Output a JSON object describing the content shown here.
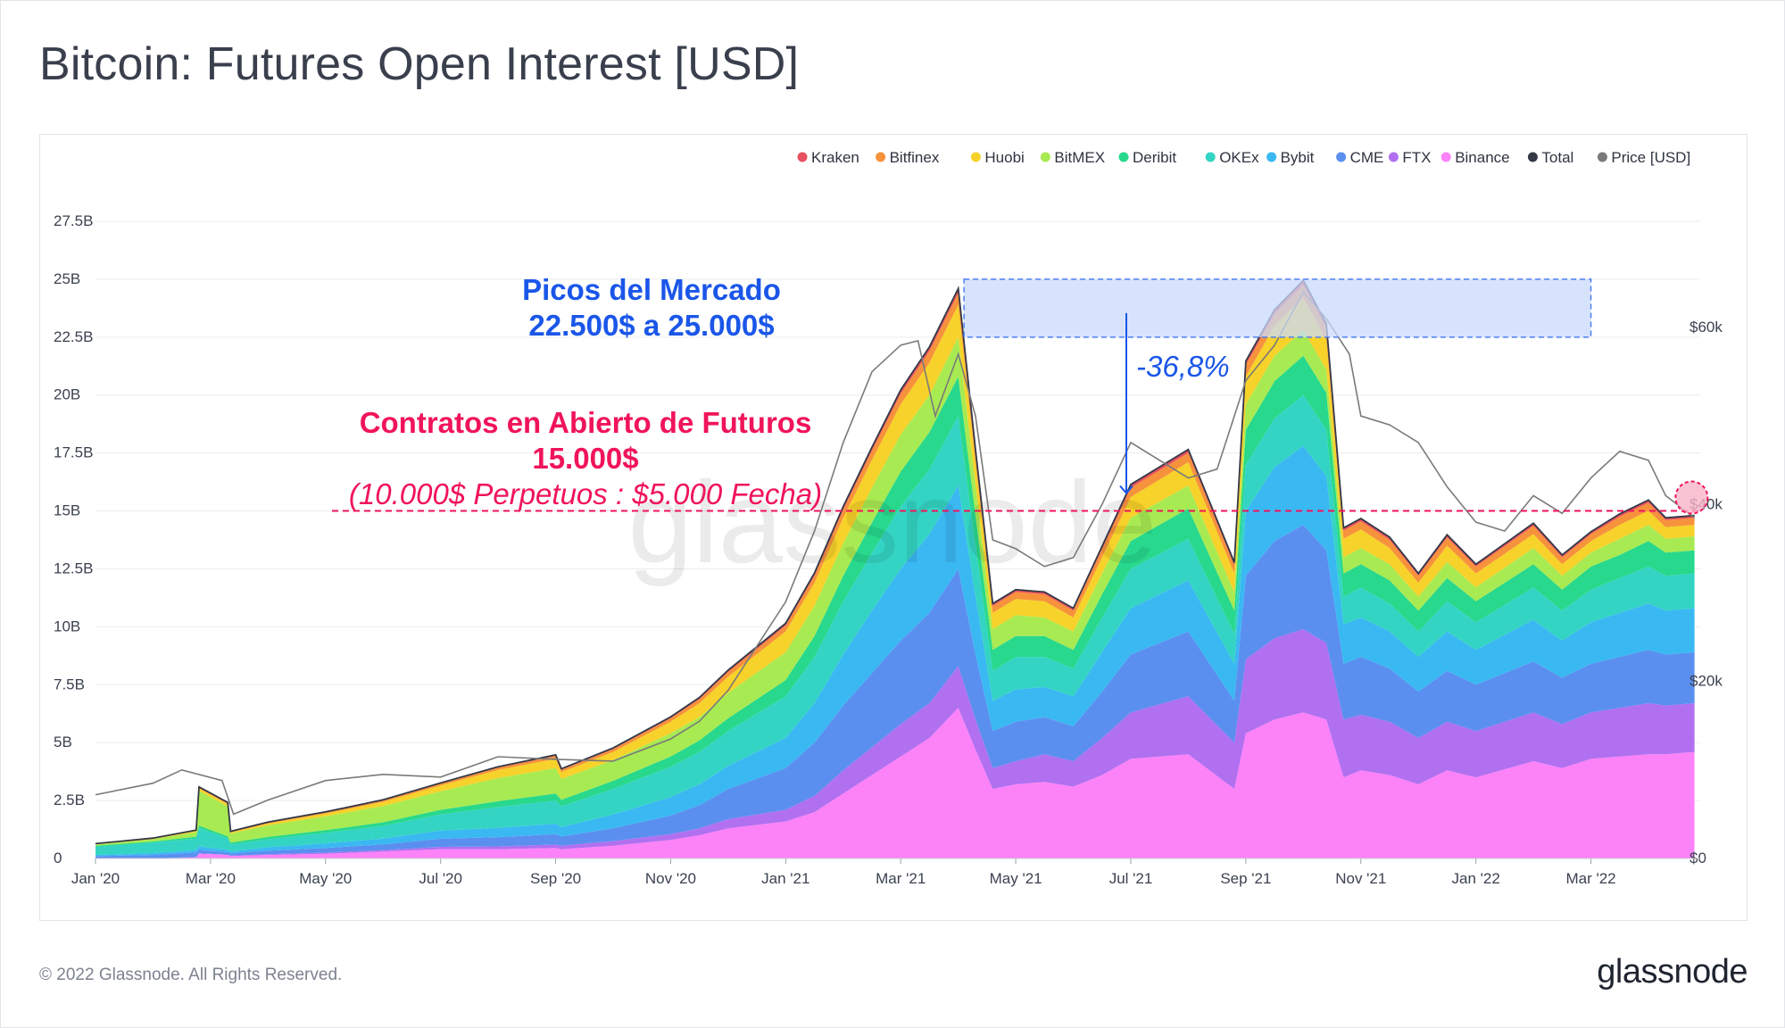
{
  "title": "Bitcoin: Futures Open Interest [USD]",
  "footer": "© 2022 Glassnode. All Rights Reserved.",
  "brand": "glassnode",
  "watermark": "glassnode",
  "colors": {
    "kraken": "#e8515f",
    "bitfinex": "#f7923c",
    "huobi": "#f7d22a",
    "bitmex": "#a8ea52",
    "deribit": "#28d88c",
    "okex": "#34d4c4",
    "bybit": "#3ab8f2",
    "cme": "#5a8ff0",
    "ftx": "#b070f0",
    "binance": "#fc82f8",
    "total": "#333a46",
    "price": "#7a7a7a",
    "annotation_blue": "#1a56e8",
    "annotation_red": "#f0145a"
  },
  "annotations": {
    "peaks_line1": "Picos del Mercado",
    "peaks_line2": "22.500$ a 25.000$",
    "drop": "-36,8%",
    "contracts_line1": "Contratos en Abierto de Futuros",
    "contracts_line2": "15.000$",
    "contracts_line3": "(10.000$ Perpetuos : $5.000 Fecha)"
  },
  "chart_data": {
    "type": "area",
    "title": "Bitcoin: Futures Open Interest [USD]",
    "stacked": true,
    "legend": [
      {
        "name": "Kraken",
        "color": "#e8515f"
      },
      {
        "name": "Bitfinex",
        "color": "#f7923c"
      },
      {
        "name": "Huobi",
        "color": "#f7d22a"
      },
      {
        "name": "BitMEX",
        "color": "#a8ea52"
      },
      {
        "name": "Deribit",
        "color": "#28d88c"
      },
      {
        "name": "OKEx",
        "color": "#34d4c4"
      },
      {
        "name": "Bybit",
        "color": "#3ab8f2"
      },
      {
        "name": "CME",
        "color": "#5a8ff0"
      },
      {
        "name": "FTX",
        "color": "#b070f0"
      },
      {
        "name": "Binance",
        "color": "#fc82f8"
      },
      {
        "name": "Total",
        "color": "#333a46"
      },
      {
        "name": "Price [USD]",
        "color": "#7a7a7a"
      }
    ],
    "legend_position": "top-right",
    "x_ticks": [
      "Jan '20",
      "Mar '20",
      "May '20",
      "Jul '20",
      "Sep '20",
      "Nov '20",
      "Jan '21",
      "Mar '21",
      "May '21",
      "Jul '21",
      "Sep '21",
      "Nov '21",
      "Jan '22",
      "Mar '22"
    ],
    "y_ticks_left": [
      "0",
      "2.5B",
      "5B",
      "7.5B",
      "10B",
      "12.5B",
      "15B",
      "17.5B",
      "20B",
      "22.5B",
      "25B",
      "27.5B"
    ],
    "y_ticks_right": [
      "$0",
      "$20k",
      "$40k",
      "$60k"
    ],
    "ylim_left": [
      0,
      27.5
    ],
    "ylim_right": [
      0,
      72000
    ],
    "x_months_range": [
      0,
      27.9
    ],
    "series_order_bottom_to_top": [
      "binance",
      "ftx",
      "cme",
      "bybit",
      "okex",
      "deribit",
      "bitmex",
      "huobi",
      "bitfinex",
      "kraken"
    ],
    "months": [
      0,
      1,
      1.75,
      1.8,
      2.3,
      2.35,
      3,
      4,
      5,
      6,
      7,
      8,
      8.1,
      9,
      10,
      10.5,
      11,
      12,
      12.5,
      13,
      13.5,
      14,
      14.5,
      15,
      15.3,
      15.6,
      16,
      16.5,
      17,
      17.5,
      18,
      19,
      19.8,
      20,
      20.5,
      21,
      21.4,
      21.7,
      22,
      22.5,
      23,
      23.5,
      24,
      25,
      25.5,
      26,
      26.5,
      27,
      27.3,
      27.8
    ],
    "series": [
      {
        "name": "Binance",
        "values": [
          0,
          0,
          0.05,
          0.2,
          0.15,
          0.1,
          0.15,
          0.2,
          0.3,
          0.4,
          0.4,
          0.45,
          0.4,
          0.55,
          0.8,
          1.0,
          1.3,
          1.6,
          2.0,
          2.8,
          3.6,
          4.4,
          5.2,
          6.5,
          4.7,
          3.0,
          3.2,
          3.3,
          3.1,
          3.6,
          4.3,
          4.5,
          3.0,
          5.4,
          6.0,
          6.3,
          6.0,
          3.5,
          3.8,
          3.6,
          3.2,
          3.8,
          3.5,
          4.2,
          3.9,
          4.3,
          4.4,
          4.5,
          4.5,
          4.6
        ]
      },
      {
        "name": "FTX",
        "values": [
          0,
          0,
          0.01,
          0.02,
          0.02,
          0.02,
          0.03,
          0.05,
          0.06,
          0.1,
          0.12,
          0.15,
          0.15,
          0.2,
          0.25,
          0.3,
          0.4,
          0.5,
          0.7,
          1.0,
          1.2,
          1.4,
          1.5,
          1.8,
          1.3,
          0.9,
          1.0,
          1.2,
          1.1,
          1.6,
          2.0,
          2.5,
          2.0,
          3.2,
          3.5,
          3.6,
          3.3,
          2.5,
          2.4,
          2.3,
          2.0,
          2.1,
          2.0,
          2.1,
          1.9,
          2.0,
          2.1,
          2.2,
          2.1,
          2.1
        ]
      },
      {
        "name": "CME",
        "values": [
          0.1,
          0.15,
          0.2,
          0.15,
          0.1,
          0.1,
          0.15,
          0.2,
          0.25,
          0.35,
          0.4,
          0.45,
          0.4,
          0.55,
          0.8,
          1.0,
          1.3,
          1.8,
          2.3,
          2.8,
          3.2,
          3.6,
          3.9,
          4.2,
          2.8,
          1.6,
          1.7,
          1.6,
          1.5,
          2.0,
          2.5,
          2.8,
          1.8,
          3.6,
          4.2,
          4.5,
          4.0,
          2.4,
          2.5,
          2.3,
          2.0,
          2.2,
          2.0,
          2.2,
          2.0,
          2.1,
          2.2,
          2.3,
          2.2,
          2.2
        ]
      },
      {
        "name": "Bybit",
        "values": [
          0.05,
          0.08,
          0.1,
          0.15,
          0.1,
          0.08,
          0.15,
          0.2,
          0.25,
          0.35,
          0.4,
          0.45,
          0.4,
          0.6,
          0.8,
          0.9,
          1.0,
          1.3,
          1.7,
          2.2,
          2.7,
          3.1,
          3.4,
          3.6,
          2.5,
          1.3,
          1.4,
          1.3,
          1.3,
          1.7,
          2.0,
          2.2,
          1.6,
          2.8,
          3.2,
          3.4,
          3.2,
          1.7,
          1.7,
          1.6,
          1.5,
          1.7,
          1.5,
          1.8,
          1.6,
          1.8,
          1.9,
          2.0,
          1.9,
          1.9
        ]
      },
      {
        "name": "OKEx",
        "values": [
          0.35,
          0.45,
          0.5,
          0.8,
          0.5,
          0.3,
          0.35,
          0.45,
          0.55,
          0.7,
          0.9,
          1.0,
          0.9,
          1.1,
          1.3,
          1.4,
          1.5,
          1.8,
          2.0,
          2.3,
          2.5,
          2.7,
          2.8,
          3.0,
          2.2,
          1.3,
          1.4,
          1.3,
          1.2,
          1.5,
          1.7,
          1.8,
          1.3,
          2.0,
          2.1,
          2.2,
          2.0,
          1.2,
          1.3,
          1.2,
          1.1,
          1.3,
          1.2,
          1.4,
          1.3,
          1.4,
          1.5,
          1.6,
          1.5,
          1.5
        ]
      },
      {
        "name": "Deribit",
        "values": [
          0.05,
          0.05,
          0.08,
          0.1,
          0.08,
          0.08,
          0.1,
          0.12,
          0.15,
          0.2,
          0.25,
          0.3,
          0.28,
          0.35,
          0.45,
          0.5,
          0.55,
          0.7,
          0.9,
          1.1,
          1.3,
          1.5,
          1.6,
          1.7,
          1.3,
          0.9,
          0.9,
          0.9,
          0.8,
          1.0,
          1.2,
          1.3,
          1.0,
          1.5,
          1.6,
          1.7,
          1.6,
          1.0,
          1.0,
          1.0,
          0.9,
          1.0,
          0.9,
          1.0,
          0.9,
          1.0,
          1.0,
          1.1,
          1.0,
          1.0
        ]
      },
      {
        "name": "BitMEX",
        "values": [
          0.05,
          0.1,
          0.2,
          1.5,
          1.3,
          0.4,
          0.5,
          0.6,
          0.7,
          0.8,
          1.0,
          1.1,
          0.9,
          0.9,
          1.0,
          1.0,
          1.1,
          1.2,
          1.3,
          1.4,
          1.5,
          1.6,
          1.6,
          1.7,
          1.3,
          0.9,
          0.9,
          0.8,
          0.8,
          0.9,
          1.0,
          1.0,
          0.8,
          1.1,
          1.1,
          1.1,
          1.0,
          0.7,
          0.7,
          0.7,
          0.6,
          0.7,
          0.6,
          0.7,
          0.6,
          0.6,
          0.7,
          0.7,
          0.6,
          0.6
        ]
      },
      {
        "name": "Huobi",
        "values": [
          0.02,
          0.03,
          0.05,
          0.1,
          0.1,
          0.05,
          0.08,
          0.12,
          0.18,
          0.25,
          0.35,
          0.4,
          0.3,
          0.35,
          0.5,
          0.6,
          0.7,
          0.9,
          1.0,
          1.1,
          1.2,
          1.3,
          1.4,
          1.4,
          1.0,
          0.7,
          0.7,
          0.7,
          0.6,
          0.7,
          0.9,
          1.0,
          0.8,
          1.2,
          1.3,
          1.4,
          1.3,
          0.8,
          0.8,
          0.7,
          0.6,
          0.7,
          0.6,
          0.6,
          0.5,
          0.5,
          0.6,
          0.6,
          0.5,
          0.5
        ]
      },
      {
        "name": "Bitfinex",
        "values": [
          0.01,
          0.01,
          0.02,
          0.05,
          0.05,
          0.03,
          0.04,
          0.05,
          0.06,
          0.08,
          0.1,
          0.12,
          0.1,
          0.12,
          0.15,
          0.18,
          0.2,
          0.25,
          0.3,
          0.35,
          0.4,
          0.45,
          0.5,
          0.5,
          0.4,
          0.3,
          0.3,
          0.3,
          0.3,
          0.35,
          0.4,
          0.4,
          0.35,
          0.5,
          0.5,
          0.55,
          0.5,
          0.35,
          0.35,
          0.35,
          0.3,
          0.35,
          0.3,
          0.35,
          0.3,
          0.3,
          0.35,
          0.35,
          0.3,
          0.3
        ]
      },
      {
        "name": "Kraken",
        "values": [
          0.01,
          0.01,
          0.01,
          0.02,
          0.02,
          0.01,
          0.02,
          0.02,
          0.03,
          0.03,
          0.04,
          0.05,
          0.04,
          0.05,
          0.06,
          0.07,
          0.08,
          0.1,
          0.12,
          0.14,
          0.15,
          0.17,
          0.18,
          0.2,
          0.15,
          0.1,
          0.1,
          0.1,
          0.1,
          0.12,
          0.14,
          0.15,
          0.12,
          0.17,
          0.18,
          0.2,
          0.18,
          0.12,
          0.12,
          0.12,
          0.1,
          0.12,
          0.1,
          0.12,
          0.1,
          0.1,
          0.12,
          0.12,
          0.1,
          0.1
        ]
      }
    ],
    "price": {
      "months": [
        0,
        1,
        1.5,
        2.2,
        2.4,
        3,
        4,
        5,
        6,
        7,
        8,
        9,
        10,
        10.5,
        11,
        12,
        12.5,
        13,
        13.5,
        14,
        14.3,
        14.6,
        15,
        15.3,
        15.6,
        16,
        16.5,
        17,
        17.5,
        18,
        19,
        19.5,
        20,
        20.5,
        21,
        21.4,
        21.8,
        22,
        22.5,
        23,
        23.5,
        24,
        24.5,
        25,
        25.5,
        26,
        26.5,
        27,
        27.3,
        27.8
      ],
      "values": [
        7200,
        8500,
        10000,
        8800,
        5000,
        6600,
        8800,
        9500,
        9200,
        11500,
        11200,
        11000,
        13500,
        15500,
        19000,
        29000,
        37000,
        47000,
        55000,
        58000,
        58500,
        50000,
        57000,
        50000,
        36000,
        35000,
        33000,
        34000,
        40000,
        47000,
        43000,
        44000,
        54000,
        58000,
        64000,
        61000,
        57000,
        50000,
        49000,
        47000,
        42000,
        38000,
        37000,
        41000,
        39000,
        43000,
        46000,
        45000,
        41000,
        38500
      ]
    },
    "annotation_band": {
      "y_from": 22.5,
      "y_to": 25.0,
      "x_from_month": 15.1,
      "x_to_month": 26.0
    },
    "reference_line": {
      "y": 15.0
    }
  }
}
